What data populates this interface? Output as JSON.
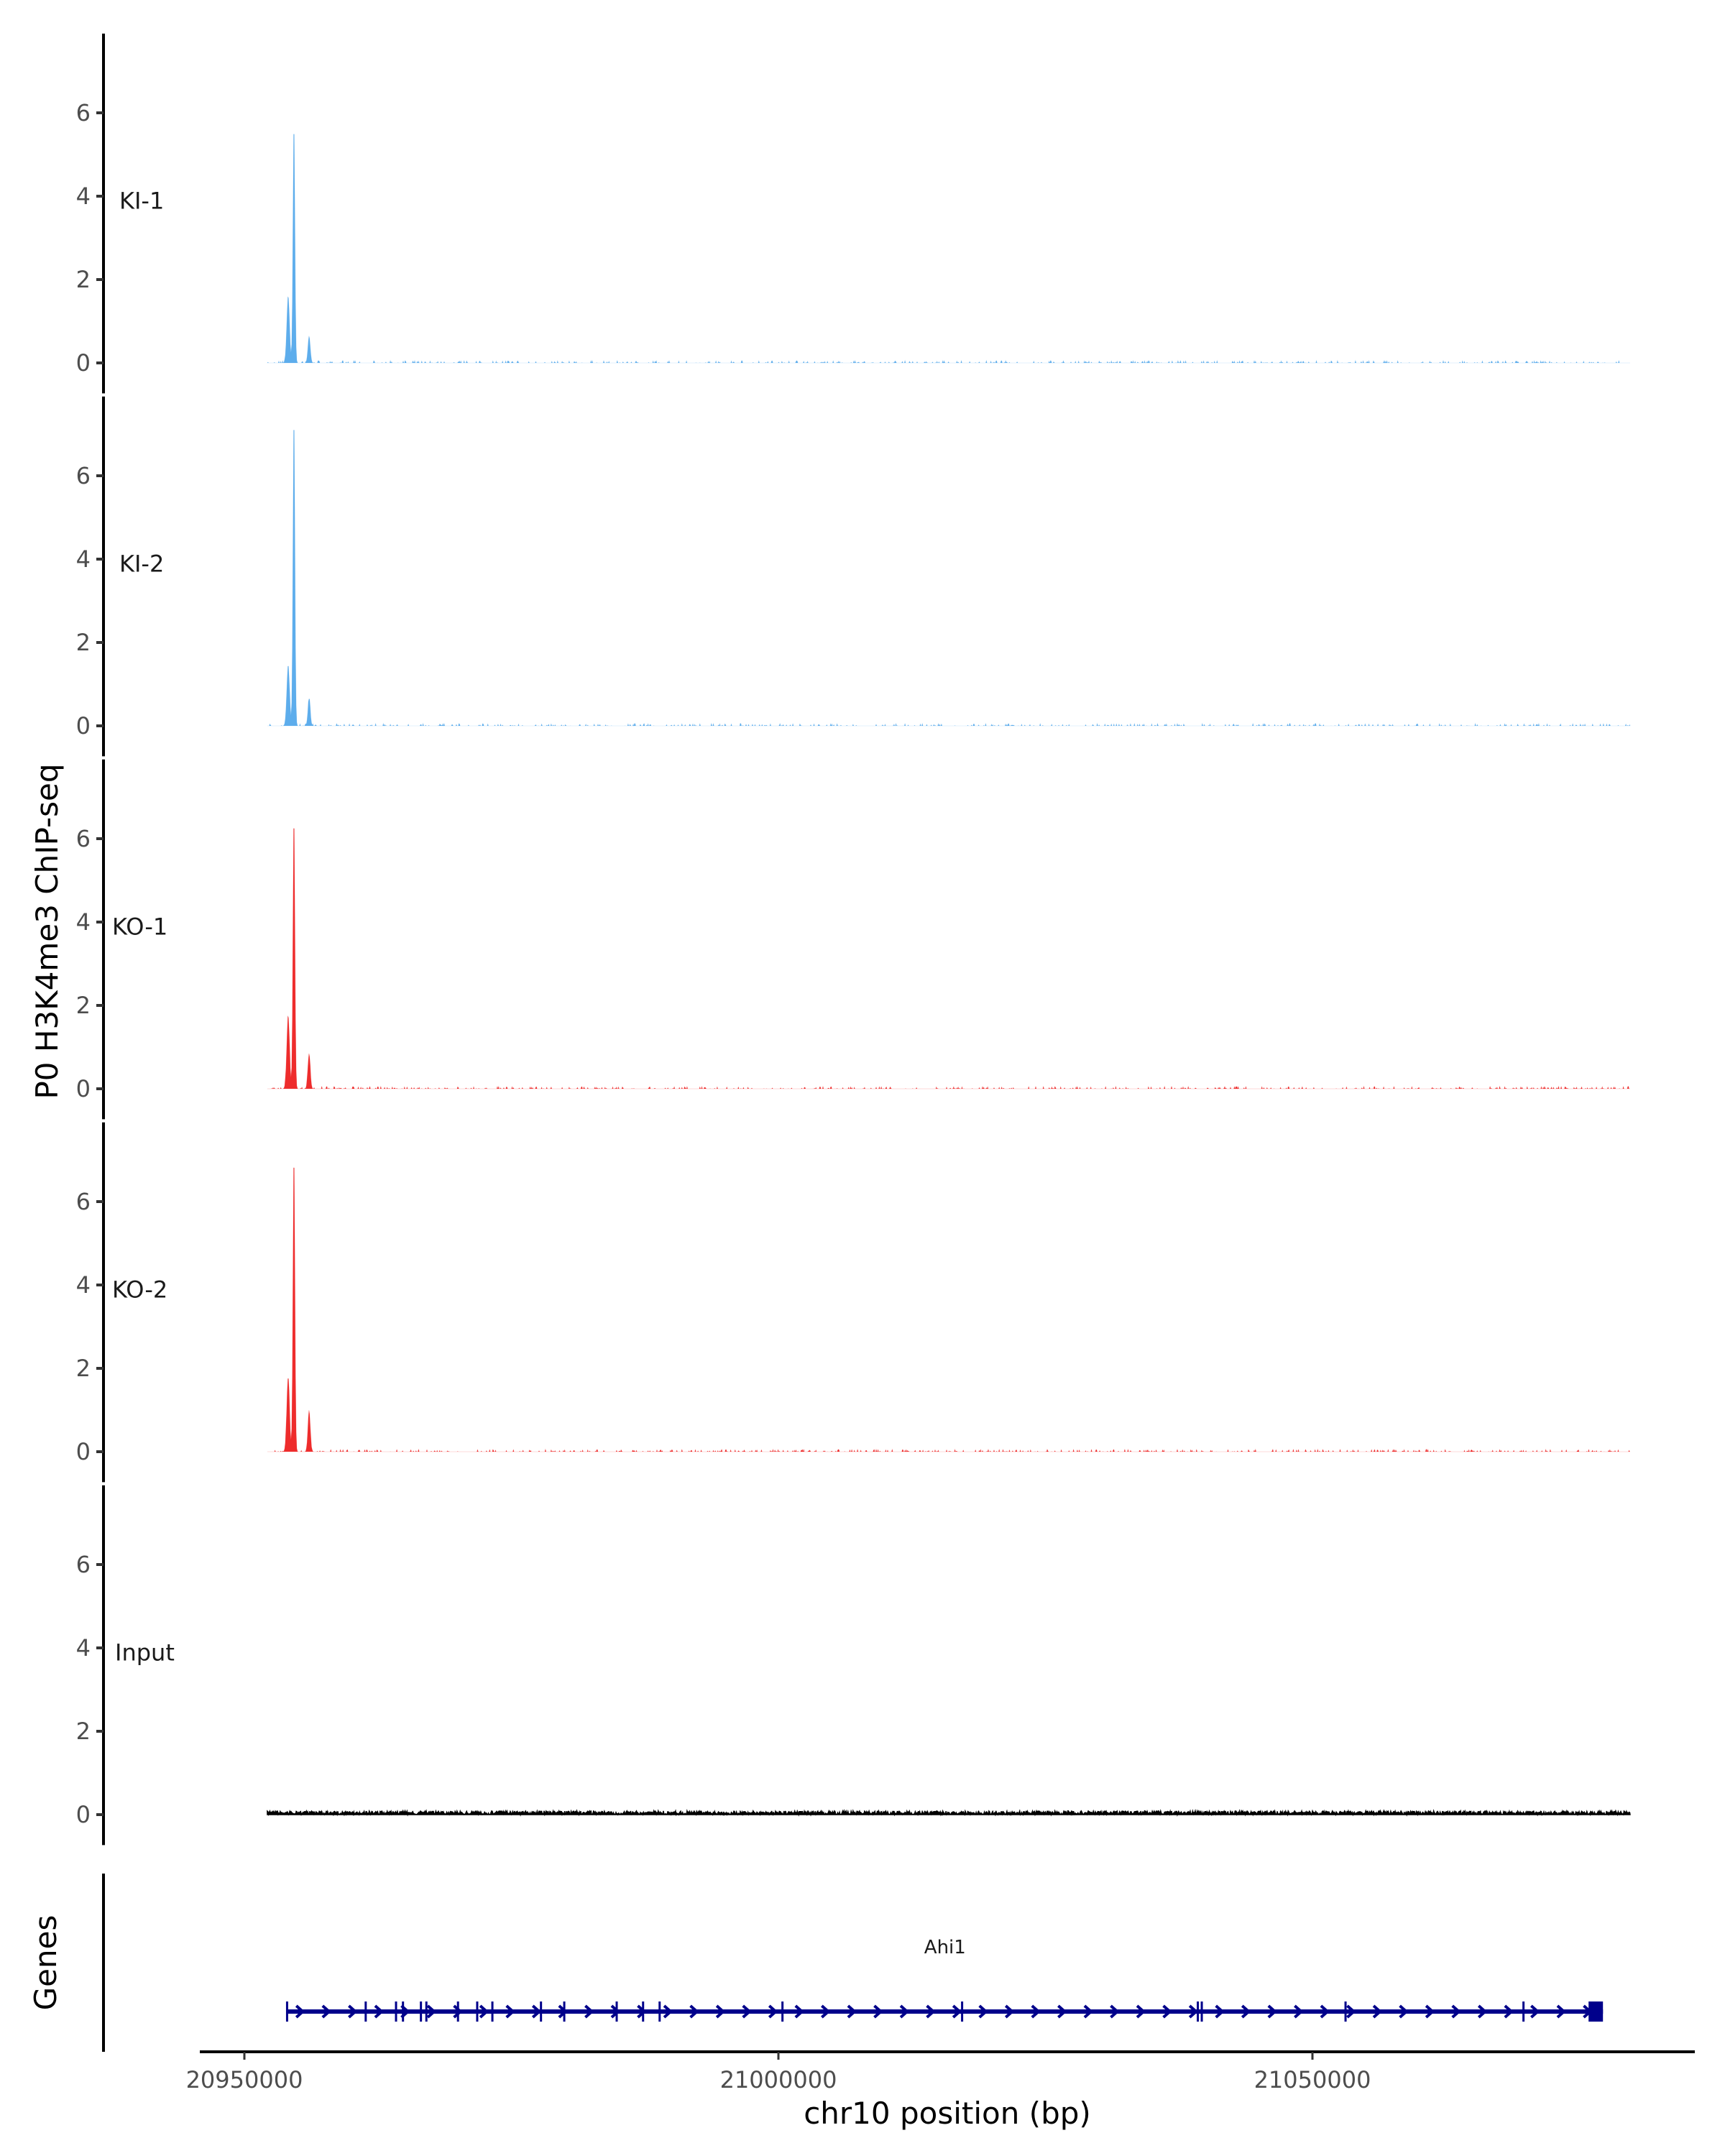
{
  "chart_data": {
    "type": "area",
    "ylabel": "P0 H3K4me3 ChIP-seq",
    "xlabel": "chr10 position (bp)",
    "xlim": [
      20945600,
      21091000
    ],
    "x_ticks": [
      20950000,
      21000000,
      21050000
    ],
    "x_tick_labels": [
      "20950000",
      "21000000",
      "21050000"
    ],
    "ylim": [
      -0.73,
      7.9
    ],
    "y_ticks": [
      0,
      2,
      4,
      6
    ],
    "y_tick_labels": [
      "0",
      "2",
      "4",
      "6"
    ],
    "data_range": [
      20952150,
      21079740
    ],
    "series": [
      {
        "name": "KI-1",
        "color": "#5DADEC",
        "peaks": [
          {
            "pos": 20954100,
            "height": 1.6,
            "sd": 130
          },
          {
            "pos": 20954640,
            "height": 5.8,
            "sd": 90
          },
          {
            "pos": 20956060,
            "height": 0.65,
            "sd": 110
          }
        ]
      },
      {
        "name": "KI-2",
        "color": "#5DADEC",
        "peaks": [
          {
            "pos": 20954100,
            "height": 1.45,
            "sd": 130
          },
          {
            "pos": 20954640,
            "height": 7.5,
            "sd": 90
          },
          {
            "pos": 20956060,
            "height": 0.65,
            "sd": 110
          }
        ]
      },
      {
        "name": "KO-1",
        "color": "#EE2C2C",
        "peaks": [
          {
            "pos": 20954100,
            "height": 1.75,
            "sd": 130
          },
          {
            "pos": 20954640,
            "height": 6.6,
            "sd": 90
          },
          {
            "pos": 20956060,
            "height": 0.85,
            "sd": 110
          }
        ]
      },
      {
        "name": "KO-2",
        "color": "#EE2C2C",
        "peaks": [
          {
            "pos": 20954100,
            "height": 1.8,
            "sd": 130
          },
          {
            "pos": 20954640,
            "height": 7.2,
            "sd": 90
          },
          {
            "pos": 20956060,
            "height": 1.0,
            "sd": 110
          }
        ]
      },
      {
        "name": "Input",
        "color": "#000000",
        "peaks": []
      }
    ],
    "genes_panel": {
      "label": "Genes",
      "gene": {
        "name": "Ahi1",
        "color": "#00008B",
        "start": 20954000,
        "end": 21077200,
        "strand": "+",
        "exons": [
          20954000,
          20961360,
          20964200,
          20964850,
          20966530,
          20967040,
          20970000,
          20971800,
          20973220,
          20977770,
          20979950,
          20984860,
          20987330,
          20988880,
          21000380,
          21017200,
          21039270,
          21039640,
          21053100,
          21069760
        ]
      }
    }
  }
}
